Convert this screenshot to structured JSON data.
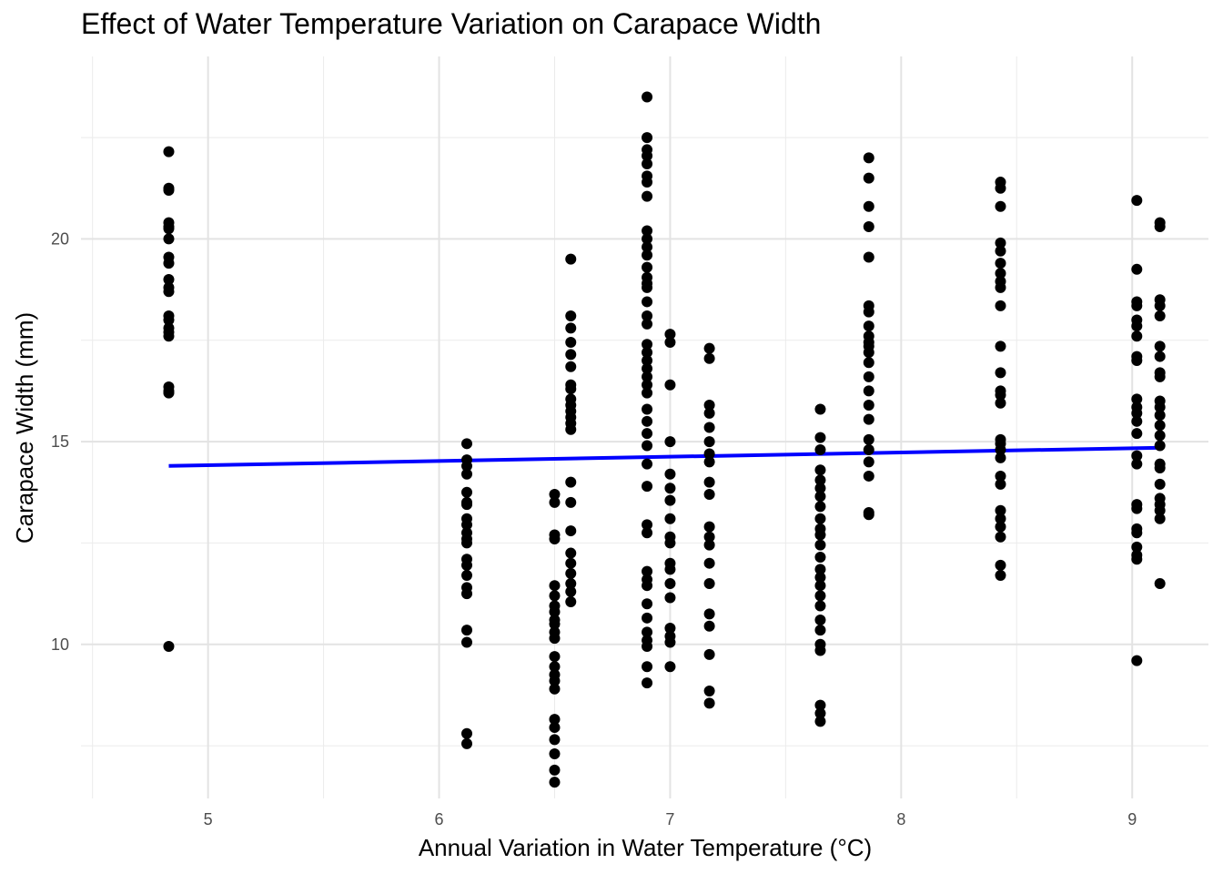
{
  "chart_data": {
    "type": "scatter",
    "title": "Effect of Water Temperature Variation on Carapace Width",
    "xlabel": "Annual Variation in Water Temperature (°C)",
    "ylabel": "Carapace Width (mm)",
    "xlim": [
      4.45,
      9.33
    ],
    "ylim": [
      6.2,
      24.5
    ],
    "x_ticks": [
      5,
      6,
      7,
      8,
      9
    ],
    "y_ticks": [
      10,
      15,
      20
    ],
    "grid": true,
    "point_color": "#000000",
    "trend_color": "#0000ff",
    "trend_line": {
      "x": [
        4.83,
        9.12
      ],
      "y": [
        14.4,
        14.85
      ]
    },
    "points": [
      {
        "x": 4.83,
        "y": [
          22.15,
          21.25,
          21.2,
          20.4,
          20.3,
          20.25,
          20.0,
          19.55,
          19.4,
          19.0,
          18.8,
          18.7,
          18.1,
          18.0,
          17.8,
          17.7,
          17.6,
          16.35,
          16.25,
          16.2,
          9.95
        ]
      },
      {
        "x": 6.12,
        "y": [
          14.95,
          14.55,
          14.4,
          14.2,
          13.75,
          13.5,
          13.45,
          13.1,
          12.95,
          12.75,
          12.6,
          12.5,
          12.1,
          11.95,
          11.7,
          11.4,
          11.25,
          10.35,
          10.05,
          7.8,
          7.55
        ]
      },
      {
        "x": 6.5,
        "y": [
          13.7,
          13.5,
          12.7,
          12.6,
          11.45,
          11.2,
          10.95,
          10.8,
          10.6,
          10.5,
          10.3,
          10.15,
          9.7,
          9.45,
          9.25,
          9.1,
          8.9,
          8.15,
          7.95,
          7.65,
          7.3,
          6.9,
          6.6
        ]
      },
      {
        "x": 6.57,
        "y": [
          19.5,
          18.1,
          17.8,
          17.45,
          17.15,
          16.85,
          16.4,
          16.3,
          16.05,
          15.9,
          15.75,
          15.6,
          15.45,
          15.3,
          14.0,
          13.5,
          12.8,
          12.25,
          12.0,
          11.75,
          11.5,
          11.3,
          11.05
        ]
      },
      {
        "x": 6.9,
        "y": [
          23.5,
          22.5,
          22.2,
          22.05,
          21.85,
          21.55,
          21.4,
          21.05,
          20.2,
          20.0,
          19.8,
          19.6,
          19.3,
          19.05,
          18.9,
          18.8,
          18.45,
          18.1,
          17.9,
          17.4,
          17.2,
          17.0,
          16.8,
          16.6,
          16.4,
          16.2,
          15.8,
          15.5,
          15.2,
          14.9,
          14.45,
          13.9,
          12.95,
          12.75,
          11.8,
          11.6,
          11.45,
          11.0,
          10.65,
          10.3,
          10.1,
          9.95,
          9.45,
          9.05
        ]
      },
      {
        "x": 7.0,
        "y": [
          17.65,
          17.45,
          16.4,
          15.0,
          14.2,
          13.85,
          13.55,
          13.1,
          12.65,
          12.5,
          12.0,
          11.85,
          11.5,
          11.15,
          10.4,
          10.2,
          10.05,
          9.45
        ]
      },
      {
        "x": 7.17,
        "y": [
          17.3,
          17.05,
          15.9,
          15.7,
          15.35,
          15.0,
          14.7,
          14.5,
          14.0,
          13.7,
          12.9,
          12.65,
          12.45,
          12.0,
          11.5,
          10.75,
          10.45,
          9.75,
          8.85,
          8.55
        ]
      },
      {
        "x": 7.65,
        "y": [
          15.8,
          15.1,
          14.8,
          14.3,
          14.05,
          13.85,
          13.65,
          13.4,
          13.1,
          12.85,
          12.7,
          12.45,
          12.15,
          11.85,
          11.65,
          11.45,
          11.2,
          10.95,
          10.6,
          10.35,
          10.0,
          9.85,
          8.5,
          8.3,
          8.1
        ]
      },
      {
        "x": 7.86,
        "y": [
          22.0,
          21.5,
          20.8,
          20.3,
          19.55,
          18.35,
          18.2,
          17.85,
          17.6,
          17.45,
          17.35,
          17.2,
          16.95,
          16.6,
          16.25,
          15.9,
          15.55,
          15.05,
          14.8,
          14.5,
          14.15,
          13.25,
          13.2
        ]
      },
      {
        "x": 8.43,
        "y": [
          21.4,
          21.25,
          20.8,
          19.9,
          19.7,
          19.4,
          19.15,
          18.95,
          18.8,
          18.35,
          17.35,
          16.7,
          16.25,
          16.15,
          15.95,
          15.05,
          14.95,
          14.8,
          14.6,
          14.15,
          13.95,
          13.3,
          13.1,
          12.9,
          12.65,
          11.95,
          11.7
        ]
      },
      {
        "x": 9.02,
        "y": [
          20.95,
          19.25,
          18.45,
          18.35,
          18.0,
          17.85,
          17.6,
          17.1,
          17.0,
          16.05,
          15.85,
          15.7,
          15.5,
          15.2,
          14.65,
          14.45,
          13.45,
          13.35,
          12.85,
          12.75,
          12.4,
          12.2,
          12.1,
          9.6
        ]
      },
      {
        "x": 9.12,
        "y": [
          20.4,
          20.3,
          18.5,
          18.35,
          18.1,
          17.35,
          17.1,
          16.7,
          16.6,
          16.0,
          15.85,
          15.65,
          15.4,
          15.15,
          14.9,
          14.45,
          14.35,
          13.95,
          13.6,
          13.45,
          13.3,
          13.1,
          11.5
        ]
      }
    ]
  }
}
